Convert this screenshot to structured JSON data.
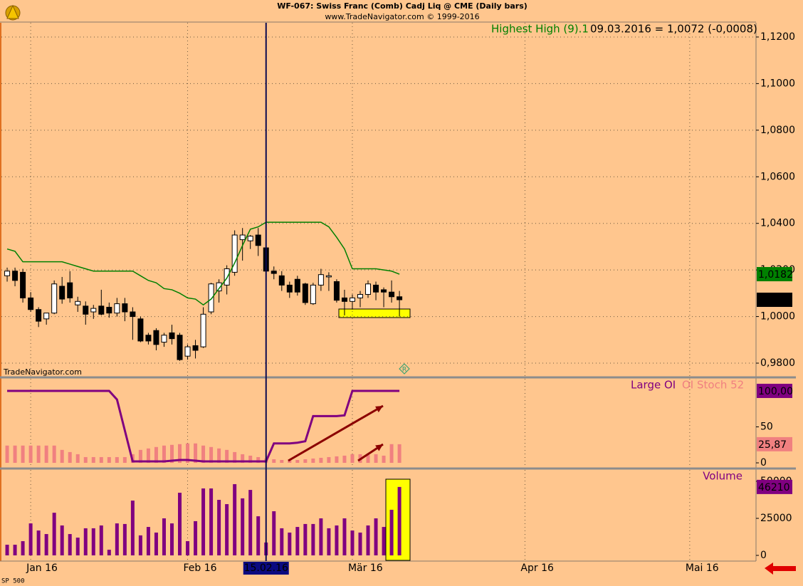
{
  "header": {
    "title": "WF-067:  Swiss Franc (Comb) Cadj Liq @ CME  (Daily bars)",
    "subtitle": "www.TradeNavigator.com © 1999-2016"
  },
  "watermark": "TradeNavigator.com",
  "footer_label": "SP 500",
  "chart_data": [
    {
      "type": "candlestick",
      "legend_info": "09.03.2016 = 1,0072 (-0,0008)",
      "xlim": [
        -0.73,
        95.45
      ],
      "xticks": [
        {
          "value": 3,
          "label": "Jan 16"
        },
        {
          "value": 23,
          "label": "Feb 16"
        },
        {
          "value": 44,
          "label": "Mär 16"
        },
        {
          "value": 66,
          "label": "Apr 16"
        },
        {
          "value": 87,
          "label": "Mai 16"
        }
      ],
      "cursor": {
        "value": 33,
        "label": "15.02.16"
      },
      "ylim": [
        0.9745,
        1.1261
      ],
      "yticks": [
        {
          "value": 0.98,
          "label": "0,9800"
        },
        {
          "value": 1.0,
          "label": "1,0000"
        },
        {
          "value": 1.02,
          "label": "1,0200"
        },
        {
          "value": 1.04,
          "label": "1,0400"
        },
        {
          "value": 1.06,
          "label": "1,0600"
        },
        {
          "value": 1.08,
          "label": "1,0800"
        },
        {
          "value": 1.1,
          "label": "1,1000"
        },
        {
          "value": 1.12,
          "label": "1,1200"
        }
      ],
      "grid": true,
      "candles": {
        "up_color": "#ffffff",
        "down_color": "#000000",
        "open": [
          1.0175,
          1.0195,
          1.019,
          1.008,
          1.003,
          0.999,
          1.0015,
          1.013,
          1.0145,
          1.005,
          1.0045,
          1.002,
          1.0045,
          1.004,
          1.0015,
          1.0055,
          1.002,
          0.999,
          0.992,
          0.994,
          0.989,
          0.993,
          0.992,
          0.983,
          0.9875,
          0.987,
          1.002,
          1.011,
          1.0135,
          1.019,
          1.033,
          1.0325,
          1.035,
          1.0295,
          1.0195,
          1.0175,
          1.0135,
          1.016,
          1.014,
          1.0055,
          1.0135,
          1.017,
          1.015,
          1.008,
          1.0065,
          1.008,
          1.0095,
          1.0135,
          1.0115,
          1.0105,
          1.0085
        ],
        "high": [
          1.021,
          1.021,
          1.0205,
          1.0105,
          1.004,
          1.0015,
          1.0155,
          1.017,
          1.0195,
          1.0085,
          1.0065,
          1.005,
          1.0115,
          1.006,
          1.008,
          1.008,
          1.004,
          1.0,
          0.993,
          0.995,
          0.993,
          0.9965,
          0.993,
          0.988,
          0.99,
          1.004,
          1.0145,
          1.016,
          1.022,
          1.037,
          1.038,
          1.035,
          1.038,
          1.0305,
          1.0215,
          1.0195,
          1.015,
          1.0175,
          1.0145,
          1.0145,
          1.0205,
          1.019,
          1.016,
          1.0115,
          1.0095,
          1.011,
          1.0155,
          1.015,
          1.0125,
          1.0155,
          1.011
        ],
        "low": [
          1.015,
          1.013,
          1.006,
          1.002,
          0.9955,
          0.9965,
          1.001,
          1.0055,
          1.006,
          1.002,
          0.9965,
          0.999,
          1.0005,
          0.9995,
          1.0,
          0.998,
          0.99,
          0.989,
          0.988,
          0.9855,
          0.987,
          0.988,
          0.981,
          0.9815,
          0.982,
          0.9865,
          1.001,
          1.006,
          1.0095,
          1.0175,
          1.024,
          1.029,
          1.026,
          1.018,
          1.016,
          1.011,
          1.008,
          1.009,
          1.005,
          1.005,
          1.011,
          1.011,
          1.006,
          1.0005,
          1.003,
          1.004,
          1.008,
          1.007,
          1.004,
          1.006,
          1.0
        ],
        "close": [
          1.0195,
          1.0155,
          1.008,
          1.003,
          0.998,
          1.0015,
          1.014,
          1.0075,
          1.008,
          1.0065,
          1.001,
          1.0035,
          1.001,
          1.0015,
          1.0055,
          1.002,
          1.0,
          0.9895,
          0.9895,
          0.988,
          0.992,
          0.9905,
          0.9815,
          0.987,
          0.9855,
          1.001,
          1.014,
          1.0145,
          1.0205,
          1.035,
          1.035,
          1.0345,
          1.0305,
          1.0195,
          1.0185,
          1.0135,
          1.0105,
          1.0105,
          1.006,
          1.0135,
          1.018,
          1.0175,
          1.007,
          1.0065,
          1.008,
          1.0095,
          1.014,
          1.0105,
          1.0105,
          1.0085,
          1.0072
        ],
        "close_label": "1,0072"
      },
      "series": [
        {
          "name": "Highest High (9).1",
          "color": "#008000",
          "type": "line",
          "last_label": "1,0182",
          "values": [
            1.029,
            1.028,
            1.0235,
            1.0235,
            1.0235,
            1.0235,
            1.0235,
            1.0235,
            1.0225,
            1.0215,
            1.0205,
            1.0195,
            1.0195,
            1.0195,
            1.0195,
            1.0195,
            1.0195,
            1.0175,
            1.0155,
            1.0145,
            1.012,
            1.0115,
            1.01,
            1.008,
            1.0075,
            1.005,
            1.0075,
            1.012,
            1.0165,
            1.023,
            1.0305,
            1.0375,
            1.0385,
            1.0405,
            1.0405,
            1.0405,
            1.0405,
            1.0405,
            1.0405,
            1.0405,
            1.0405,
            1.0385,
            1.034,
            1.029,
            1.0205,
            1.0205,
            1.0205,
            1.0205,
            1.02,
            1.0195,
            1.0182
          ]
        }
      ]
    },
    {
      "type": "line",
      "ylim": [
        -5.9,
        116.8
      ],
      "yticks": [
        0,
        50
      ],
      "grid": true,
      "series": [
        {
          "name": "Large OI",
          "color": "#800080",
          "type": "line",
          "last_label": "100,00",
          "values": [
            100,
            100,
            100,
            100,
            100,
            100,
            100,
            100,
            100,
            100,
            100,
            100,
            100,
            100,
            88,
            45,
            2,
            2,
            2,
            2,
            2,
            3,
            4,
            4,
            3,
            2,
            2,
            2,
            2,
            2,
            2,
            2,
            2,
            2,
            27,
            27,
            27,
            28,
            30,
            65,
            65,
            65,
            65,
            66,
            100,
            100,
            100,
            100,
            100,
            100,
            100
          ]
        },
        {
          "name": "OI Stoch 52",
          "color": "#f08080",
          "type": "bar",
          "last_label": "25,87",
          "values": [
            24,
            24,
            24,
            24,
            24,
            24,
            24,
            18,
            15,
            12,
            8,
            8,
            8,
            8,
            8,
            8,
            12,
            18,
            20,
            22,
            24,
            25,
            26,
            27,
            27,
            24,
            22,
            20,
            18,
            15,
            12,
            10,
            8,
            6,
            5,
            4,
            4,
            4,
            5,
            6,
            7,
            8,
            9,
            10,
            12,
            12,
            11,
            12,
            10,
            26,
            25.87
          ]
        }
      ]
    },
    {
      "type": "bar",
      "ylim": [
        -3846,
        57692
      ],
      "yticks": [
        0,
        25000,
        50000
      ],
      "grid": true,
      "series": [
        {
          "name": "Volume",
          "color": "#800080",
          "type": "bar",
          "values": [
            7200,
            7200,
            9600,
            21600,
            16800,
            14400,
            28800,
            20200,
            14400,
            12000,
            18300,
            18300,
            20200,
            3800,
            21600,
            21200,
            37000,
            13500,
            19200,
            15400,
            25000,
            21600,
            42300,
            9600,
            23100,
            45200,
            45200,
            37500,
            34600,
            48100,
            38500,
            44200,
            26400,
            8700,
            29800,
            18300,
            15400,
            19200,
            21200,
            21200,
            25000,
            18300,
            20200,
            25000,
            16800,
            15400,
            20200,
            25000,
            19200,
            30800,
            46210
          ]
        }
      ]
    }
  ]
}
